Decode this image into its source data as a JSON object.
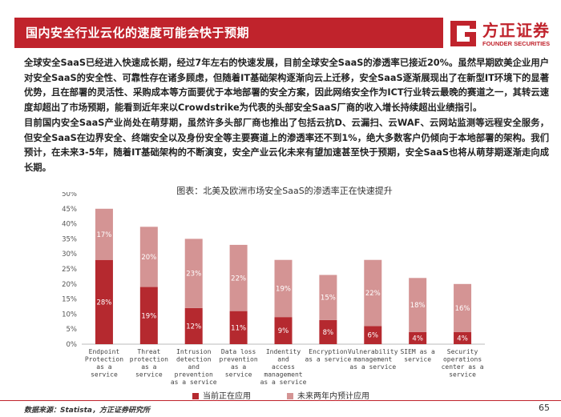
{
  "header": {
    "title": "国内安全行业云化的速度可能会快于预期",
    "logo_cn": "方正证券",
    "logo_en": "FOUNDER SECURITIES"
  },
  "body_text": {
    "p1": "全球安全SaaS已经进入快速成长期，经过7年左右的快速发展，目前全球安全SaaS的渗透率已接近20%。虽然早期欧美企业用户对安全SaaS的安全性、可靠性存在诸多顾虑，但随着IT基础架构逐渐向云上迁移，安全SaaS逐渐展现出了在新型IT环境下的显著优势，且在部署的灵活性、采购成本等方面要优于本地部署的安全方案，因此网络安全作为ICT行业转云最晚的赛道之一，其转云速度却超出了市场预期，能看到近年来以Crowdstrike为代表的头部安全SaaS厂商的收入增长持续超出业绩指引。",
    "p2": "目前国内安全SaaS产业尚处在萌芽期，虽然许多头部厂商也推出了包括云抗D、云漏扫、云WAF、云网站监测等远程安全服务，但安全SaaS在边界安全、终端安全以及身份安全等主要赛道上的渗透率还不到1%，绝大多数客户仍倾向于本地部署的架构。我们预计，在未来3-5年，随着IT基础架构的不断演变，安全产业云化未来有望加速甚至快于预期，安全SaaS也将从萌芽期逐渐走向成长期。"
  },
  "chart_data": {
    "type": "bar",
    "stacked": true,
    "title": "图表：北美及欧洲市场安全SaaS的渗透率正在快速提升",
    "categories": [
      [
        "Endpoint",
        "Protection",
        "as a",
        "service"
      ],
      [
        "Threat",
        "protection",
        "as a",
        "service"
      ],
      [
        "Intrusion",
        "detection",
        "and",
        "prevention",
        "as a service"
      ],
      [
        "Data loss",
        "prevention",
        "as a",
        "service"
      ],
      [
        "Indentity",
        "and",
        "access",
        "management",
        "as a service"
      ],
      [
        "Encryption",
        "as a service"
      ],
      [
        "Vulnerability",
        "management",
        "as a service"
      ],
      [
        "SIEM as a",
        "service"
      ],
      [
        "Security",
        "operations",
        "center as a",
        "service"
      ]
    ],
    "series": [
      {
        "name": "当前正在应用",
        "color": "#b5292f",
        "values": [
          28,
          19,
          12,
          11,
          9,
          8,
          6,
          4,
          4
        ],
        "labels": [
          "28%",
          "19%",
          "12%",
          "11%",
          "9%",
          "8%",
          "6%",
          "4%",
          "4%"
        ]
      },
      {
        "name": "未来两年内预计应用",
        "color": "#d49494",
        "values": [
          17,
          20,
          23,
          22,
          19,
          15,
          22,
          18,
          16
        ],
        "labels": [
          "17%",
          "20%",
          "23%",
          "22%",
          "19%",
          "15%",
          "22%",
          "18%",
          "16%"
        ]
      }
    ],
    "ylim": [
      0,
      50
    ],
    "yticks": [
      "0%",
      "5%",
      "10%",
      "15%",
      "20%",
      "25%",
      "30%",
      "35%",
      "40%",
      "45%",
      "50%"
    ],
    "grid": false,
    "legend": "bottom"
  },
  "footer": {
    "source": "数据来源：Statista，方正证券研究所",
    "page": "65"
  }
}
